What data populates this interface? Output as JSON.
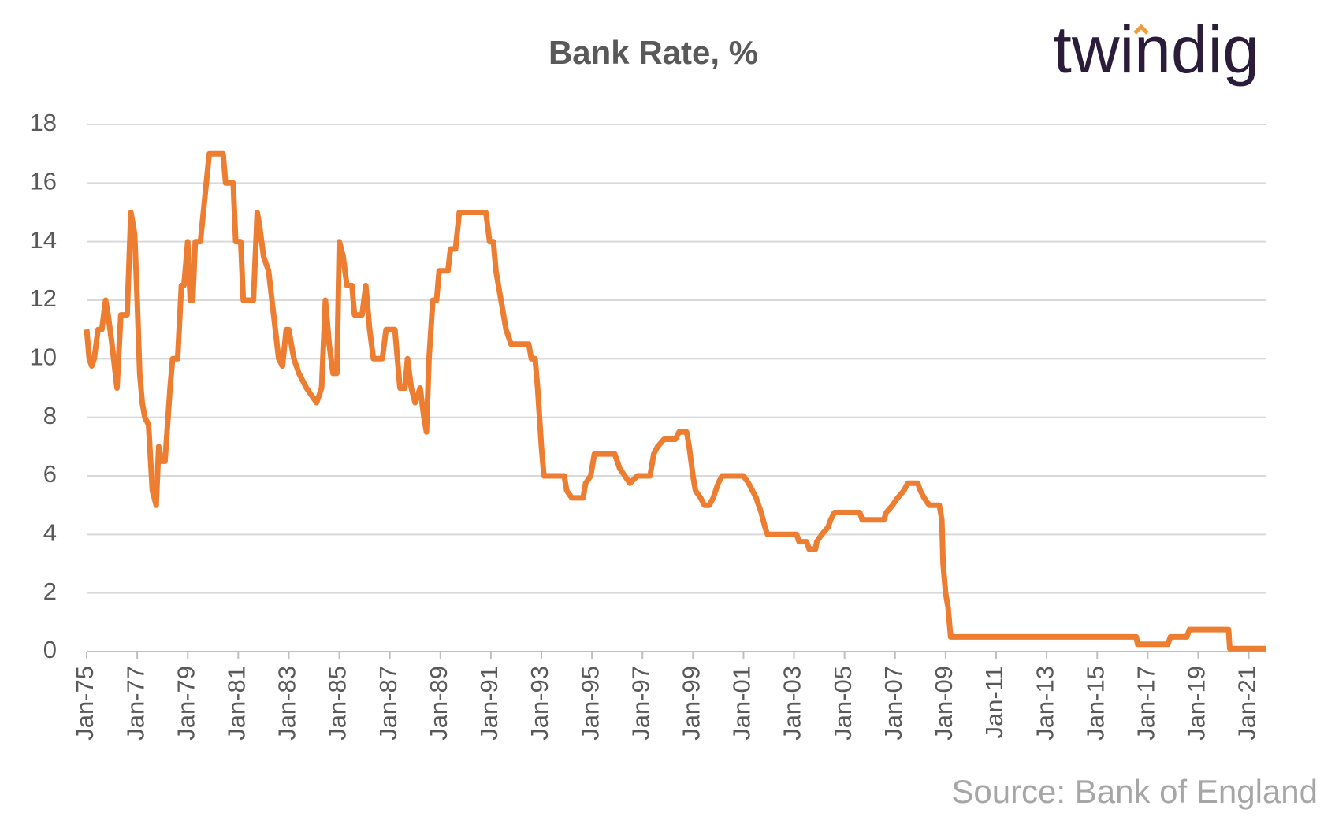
{
  "chart_data": {
    "type": "line",
    "title": "Bank Rate, %",
    "logo": "twindig",
    "source": "Source: Bank of England",
    "grid": true,
    "xlim": [
      1975,
      2021.7
    ],
    "ylim": [
      0,
      18
    ],
    "yticks": [
      0,
      2,
      4,
      6,
      8,
      10,
      12,
      14,
      16,
      18
    ],
    "xticks": [
      {
        "value": 1975,
        "label": "Jan-75"
      },
      {
        "value": 1977,
        "label": "Jan-77"
      },
      {
        "value": 1979,
        "label": "Jan-79"
      },
      {
        "value": 1981,
        "label": "Jan-81"
      },
      {
        "value": 1983,
        "label": "Jan-83"
      },
      {
        "value": 1985,
        "label": "Jan-85"
      },
      {
        "value": 1987,
        "label": "Jan-87"
      },
      {
        "value": 1989,
        "label": "Jan-89"
      },
      {
        "value": 1991,
        "label": "Jan-91"
      },
      {
        "value": 1993,
        "label": "Jan-93"
      },
      {
        "value": 1995,
        "label": "Jan-95"
      },
      {
        "value": 1997,
        "label": "Jan-97"
      },
      {
        "value": 1999,
        "label": "Jan-99"
      },
      {
        "value": 2001,
        "label": "Jan-01"
      },
      {
        "value": 2003,
        "label": "Jan-03"
      },
      {
        "value": 2005,
        "label": "Jan-05"
      },
      {
        "value": 2007,
        "label": "Jan-07"
      },
      {
        "value": 2009,
        "label": "Jan-09"
      },
      {
        "value": 2011,
        "label": "Jan-11"
      },
      {
        "value": 2013,
        "label": "Jan-13"
      },
      {
        "value": 2015,
        "label": "Jan-15"
      },
      {
        "value": 2017,
        "label": "Jan-17"
      },
      {
        "value": 2019,
        "label": "Jan-19"
      },
      {
        "value": 2021,
        "label": "Jan-21"
      }
    ],
    "series": [
      {
        "color": "#ed7d31",
        "x": [
          1975.0,
          1975.1,
          1975.2,
          1975.3,
          1975.45,
          1975.6,
          1975.75,
          1975.85,
          1976.0,
          1976.2,
          1976.35,
          1976.6,
          1976.75,
          1976.9,
          1977.0,
          1977.1,
          1977.2,
          1977.3,
          1977.45,
          1977.6,
          1977.75,
          1977.85,
          1977.95,
          1978.1,
          1978.3,
          1978.4,
          1978.6,
          1978.75,
          1978.85,
          1979.0,
          1979.1,
          1979.2,
          1979.3,
          1979.5,
          1979.85,
          1980.4,
          1980.5,
          1980.8,
          1980.9,
          1981.1,
          1981.2,
          1981.6,
          1981.75,
          1981.85,
          1982.0,
          1982.2,
          1982.4,
          1982.6,
          1982.75,
          1982.9,
          1983.0,
          1983.2,
          1983.4,
          1983.7,
          1984.1,
          1984.3,
          1984.45,
          1984.6,
          1984.75,
          1984.9,
          1985.0,
          1985.15,
          1985.3,
          1985.5,
          1985.6,
          1985.9,
          1986.05,
          1986.2,
          1986.35,
          1986.7,
          1986.85,
          1987.2,
          1987.3,
          1987.4,
          1987.6,
          1987.7,
          1987.85,
          1988.0,
          1988.2,
          1988.35,
          1988.45,
          1988.55,
          1988.7,
          1988.85,
          1988.95,
          1989.3,
          1989.4,
          1989.6,
          1989.75,
          1990.8,
          1990.95,
          1991.1,
          1991.2,
          1991.4,
          1991.5,
          1991.6,
          1991.8,
          1992.5,
          1992.6,
          1992.75,
          1992.85,
          1993.0,
          1993.1,
          1993.9,
          1994.0,
          1994.2,
          1994.65,
          1994.75,
          1994.95,
          1995.1,
          1995.9,
          1996.1,
          1996.3,
          1996.5,
          1996.8,
          1997.3,
          1997.45,
          1997.6,
          1997.85,
          1998.3,
          1998.45,
          1998.75,
          1998.85,
          1999.0,
          1999.1,
          1999.3,
          1999.45,
          1999.65,
          1999.8,
          2000.0,
          2000.15,
          2001.0,
          2001.2,
          2001.35,
          2001.5,
          2001.7,
          2001.85,
          2001.95,
          2003.1,
          2003.2,
          2003.5,
          2003.6,
          2003.85,
          2003.9,
          2004.1,
          2004.35,
          2004.45,
          2004.6,
          2005.6,
          2005.7,
          2006.55,
          2006.65,
          2006.9,
          2007.1,
          2007.35,
          2007.5,
          2007.9,
          2008.0,
          2008.15,
          2008.35,
          2008.75,
          2008.85,
          2008.9,
          2009.0,
          2009.1,
          2009.2,
          2016.55,
          2016.6,
          2017.8,
          2017.9,
          2018.55,
          2018.65,
          2020.2,
          2020.25,
          2021.7
        ],
        "values": [
          11,
          10,
          9.75,
          10,
          11,
          11,
          12,
          11.5,
          10.5,
          9,
          11.5,
          11.5,
          15,
          14.25,
          12,
          9.5,
          8.5,
          8,
          7.75,
          5.5,
          5,
          7,
          6.5,
          6.5,
          9,
          10,
          10,
          12.5,
          12.5,
          14,
          12,
          12,
          14,
          14,
          17,
          17,
          16,
          16,
          14,
          14,
          12,
          12,
          15,
          14.5,
          13.5,
          13,
          11.5,
          10,
          9.75,
          11,
          11,
          10,
          9.5,
          9,
          8.5,
          9,
          12,
          10.5,
          9.5,
          9.5,
          14,
          13.5,
          12.5,
          12.5,
          11.5,
          11.5,
          12.5,
          11,
          10,
          10,
          11,
          11,
          10,
          9,
          9,
          10,
          9,
          8.5,
          9,
          8,
          7.5,
          10,
          12,
          12,
          13,
          13,
          13.75,
          13.75,
          15,
          15,
          14,
          14,
          13,
          12,
          11.5,
          11,
          10.5,
          10.5,
          10,
          10,
          9,
          7,
          6,
          6,
          5.5,
          5.25,
          5.25,
          5.75,
          6,
          6.75,
          6.75,
          6.25,
          6,
          5.75,
          6,
          6,
          6.75,
          7,
          7.25,
          7.25,
          7.5,
          7.5,
          7,
          6,
          5.5,
          5.25,
          5,
          5,
          5.25,
          5.75,
          6,
          6,
          5.75,
          5.5,
          5.25,
          4.75,
          4.25,
          4,
          4,
          3.75,
          3.75,
          3.5,
          3.5,
          3.75,
          4,
          4.25,
          4.5,
          4.75,
          4.75,
          4.5,
          4.5,
          4.75,
          5,
          5.25,
          5.5,
          5.75,
          5.75,
          5.5,
          5.25,
          5,
          5,
          4.5,
          3,
          2,
          1.5,
          0.5,
          0.5,
          0.25,
          0.25,
          0.5,
          0.5,
          0.75,
          0.75,
          0.1,
          0.1
        ]
      }
    ]
  }
}
